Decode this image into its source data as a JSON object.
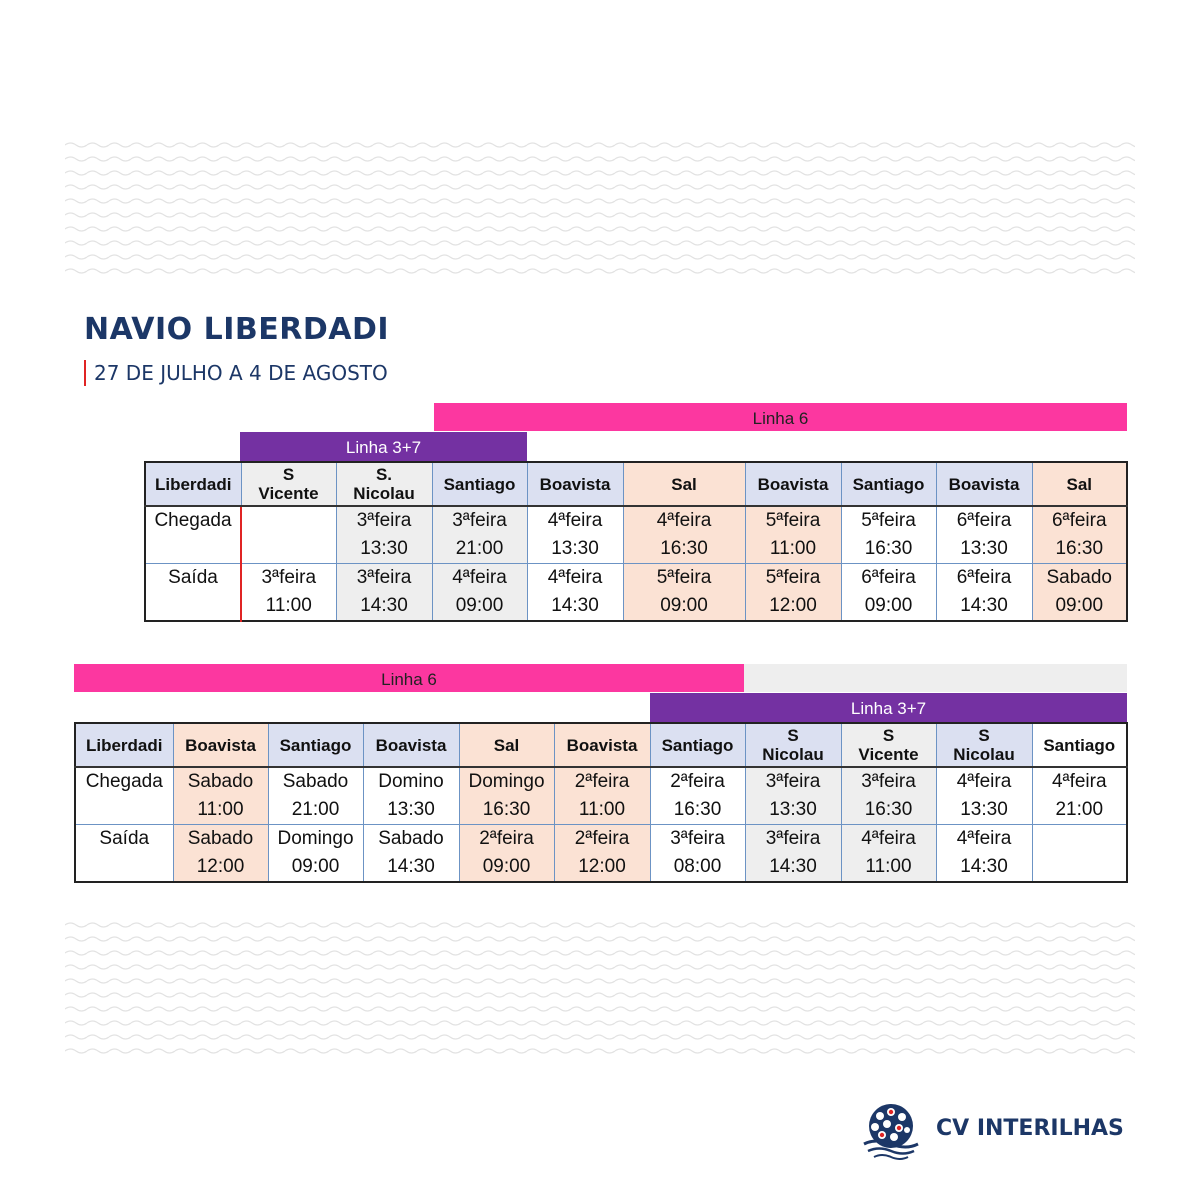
{
  "header": {
    "title": "NAVIO LIBERDADI",
    "subtitle": "27 DE JULHO A 4 DE AGOSTO"
  },
  "colors": {
    "navy": "#1c3767",
    "pink": "#fc37a0",
    "purple": "#7431a2",
    "lavender": "#dbe0f1",
    "peach": "#fbe2d4",
    "grey": "#eeeeee",
    "accent_red": "#e02424"
  },
  "table1": {
    "line_top": "Linha 6",
    "line_bottom": "Linha 3+7",
    "headers": [
      "Liberdadi",
      "S\nVicente",
      "S.\nNicolau",
      "Santiago",
      "Boavista",
      "Sal",
      "Boavista",
      "Santiago",
      "Boavista",
      "Sal"
    ],
    "row_labels": [
      "Chegada",
      "Saída"
    ],
    "chegada": [
      {
        "day": "",
        "time": ""
      },
      {
        "day": "3ªfeira",
        "time": "13:30"
      },
      {
        "day": "3ªfeira",
        "time": "21:00"
      },
      {
        "day": "4ªfeira",
        "time": "13:30"
      },
      {
        "day": "4ªfeira",
        "time": "16:30"
      },
      {
        "day": "5ªfeira",
        "time": "11:00"
      },
      {
        "day": "5ªfeira",
        "time": "16:30"
      },
      {
        "day": "6ªfeira",
        "time": "13:30"
      },
      {
        "day": "6ªfeira",
        "time": "16:30"
      }
    ],
    "saida": [
      {
        "day": "3ªfeira",
        "time": "11:00"
      },
      {
        "day": "3ªfeira",
        "time": "14:30"
      },
      {
        "day": "4ªfeira",
        "time": "09:00"
      },
      {
        "day": "4ªfeira",
        "time": "14:30"
      },
      {
        "day": "5ªfeira",
        "time": "09:00"
      },
      {
        "day": "5ªfeira",
        "time": "12:00"
      },
      {
        "day": "6ªfeira",
        "time": "09:00"
      },
      {
        "day": "6ªfeira",
        "time": "14:30"
      },
      {
        "day": "Sabado",
        "time": "09:00"
      }
    ]
  },
  "table2": {
    "line_top": "Linha 6",
    "line_bottom": "Linha 3+7",
    "headers": [
      "Liberdadi",
      "Boavista",
      "Santiago",
      "Boavista",
      "Sal",
      "Boavista",
      "Santiago",
      "S\nNicolau",
      "S\nVicente",
      "S\nNicolau",
      "Santiago"
    ],
    "row_labels": [
      "Chegada",
      "Saída"
    ],
    "chegada": [
      {
        "day": "Sabado",
        "time": "11:00"
      },
      {
        "day": "Sabado",
        "time": "21:00"
      },
      {
        "day": "Domino",
        "time": "13:30"
      },
      {
        "day": "Domingo",
        "time": "16:30"
      },
      {
        "day": "2ªfeira",
        "time": "11:00"
      },
      {
        "day": "2ªfeira",
        "time": "16:30"
      },
      {
        "day": "3ªfeira",
        "time": "13:30"
      },
      {
        "day": "3ªfeira",
        "time": "16:30"
      },
      {
        "day": "4ªfeira",
        "time": "13:30"
      },
      {
        "day": "4ªfeira",
        "time": "21:00"
      }
    ],
    "saida": [
      {
        "day": "Sabado",
        "time": "12:00"
      },
      {
        "day": "Domingo",
        "time": "09:00"
      },
      {
        "day": "Sabado",
        "time": "14:30"
      },
      {
        "day": "2ªfeira",
        "time": "09:00"
      },
      {
        "day": "2ªfeira",
        "time": "12:00"
      },
      {
        "day": "3ªfeira",
        "time": "08:00"
      },
      {
        "day": "3ªfeira",
        "time": "14:30"
      },
      {
        "day": "4ªfeira",
        "time": "11:00"
      },
      {
        "day": "4ªfeira",
        "time": "14:30"
      },
      {
        "day": "",
        "time": ""
      }
    ]
  },
  "footer": {
    "brand": "CV INTERILHAS",
    "logo_icon": "cv-interilhas-globe-logo"
  }
}
